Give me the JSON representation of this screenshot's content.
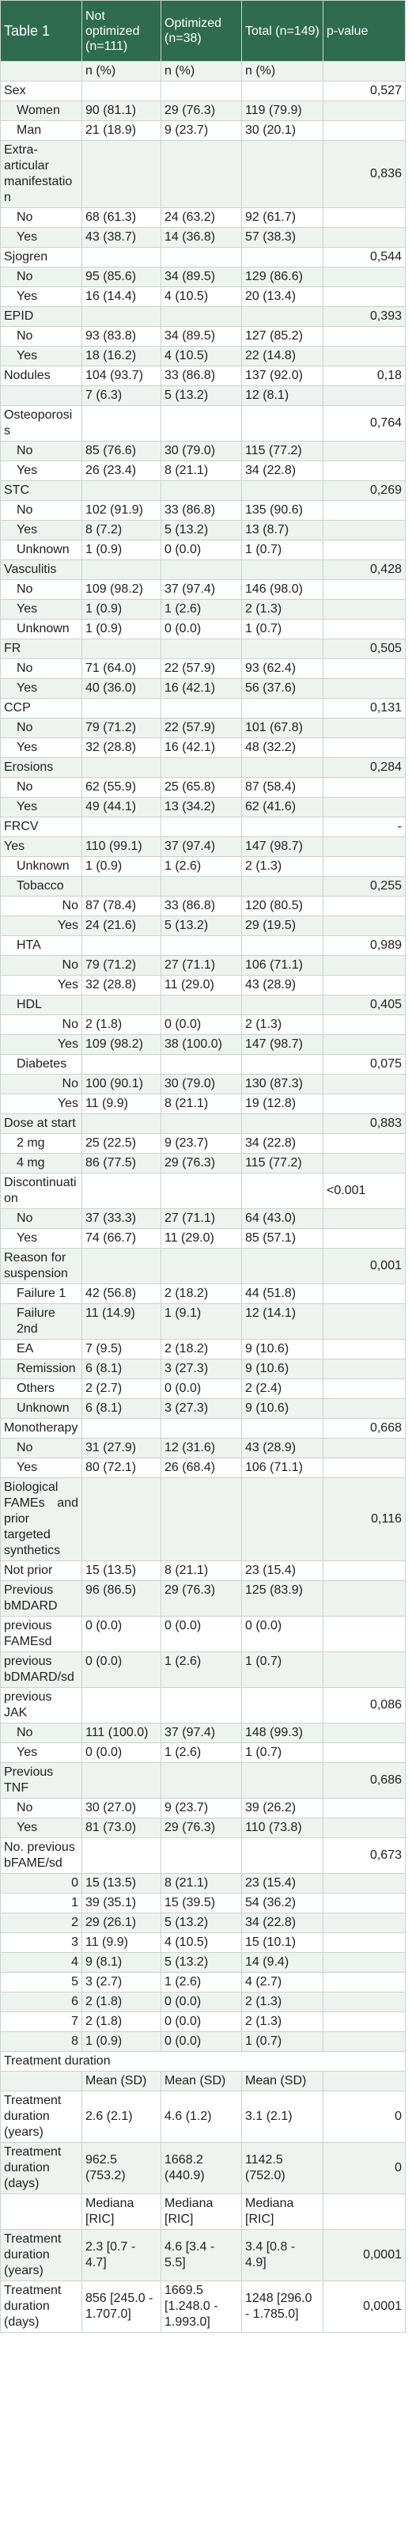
{
  "table": {
    "title": "Table 1",
    "headers": [
      "Not optimized (n=111)",
      "Optimized (n=38)",
      "Total (n=149)",
      "p-value"
    ],
    "rows": [
      {
        "label": "",
        "c1": "n (%)",
        "c2": "n (%)",
        "c3": "n (%)",
        "p": ""
      },
      {
        "label": "Sex",
        "c1": "",
        "c2": "",
        "c3": "",
        "p": "0,527",
        "type": "cat"
      },
      {
        "label": "Women",
        "c1": "90 (81.1)",
        "c2": "29 (76.3)",
        "c3": "119 (79.9)",
        "p": "",
        "type": "sub"
      },
      {
        "label": "Man",
        "c1": "21 (18.9)",
        "c2": "9 (23.7)",
        "c3": "30 (20.1)",
        "p": "",
        "type": "sub"
      },
      {
        "label": "Extra-articular manifestation",
        "c1": "",
        "c2": "",
        "c3": "",
        "p": "0,836",
        "type": "cat"
      },
      {
        "label": "No",
        "c1": "68 (61.3)",
        "c2": "24 (63.2)",
        "c3": "92 (61.7)",
        "p": "",
        "type": "sub"
      },
      {
        "label": "Yes",
        "c1": "43 (38.7)",
        "c2": "14 (36.8)",
        "c3": "57 (38.3)",
        "p": "",
        "type": "sub"
      },
      {
        "label": "Sjogren",
        "c1": "",
        "c2": "",
        "c3": "",
        "p": "0,544",
        "type": "cat"
      },
      {
        "label": "No",
        "c1": "95 (85.6)",
        "c2": "34 (89.5)",
        "c3": "129 (86.6)",
        "p": "",
        "type": "sub"
      },
      {
        "label": "Yes",
        "c1": "16 (14.4)",
        "c2": "4 (10.5)",
        "c3": "20 (13.4)",
        "p": "",
        "type": "sub"
      },
      {
        "label": "EPID",
        "c1": "",
        "c2": "",
        "c3": "",
        "p": "0,393",
        "type": "cat"
      },
      {
        "label": "No",
        "c1": "93 (83.8)",
        "c2": "34 (89.5)",
        "c3": "127 (85.2)",
        "p": "",
        "type": "sub"
      },
      {
        "label": "Yes",
        "c1": "18 (16.2)",
        "c2": "4 (10.5)",
        "c3": "22 (14.8)",
        "p": "",
        "type": "sub"
      },
      {
        "label": "Nodules",
        "c1": "104 (93.7)",
        "c2": "33 (86.8)",
        "c3": "137 (92.0)",
        "p": "0,18",
        "type": "cat"
      },
      {
        "label": "",
        "c1": "7 (6.3)",
        "c2": "5 (13.2)",
        "c3": "12 (8.1)",
        "p": "",
        "type": "sub"
      },
      {
        "label": "Osteoporosis",
        "c1": "",
        "c2": "",
        "c3": "",
        "p": "0,764",
        "type": "cat"
      },
      {
        "label": "No",
        "c1": "85 (76.6)",
        "c2": "30 (79.0)",
        "c3": "115 (77.2)",
        "p": "",
        "type": "sub"
      },
      {
        "label": "Yes",
        "c1": "26 (23.4)",
        "c2": "8 (21.1)",
        "c3": "34 (22.8)",
        "p": "",
        "type": "sub"
      },
      {
        "label": "STC",
        "c1": "",
        "c2": "",
        "c3": "",
        "p": "0,269",
        "type": "cat"
      },
      {
        "label": "No",
        "c1": "102 (91.9)",
        "c2": "33 (86.8)",
        "c3": "135 (90.6)",
        "p": "",
        "type": "sub"
      },
      {
        "label": "Yes",
        "c1": "8 (7.2)",
        "c2": "5 (13.2)",
        "c3": "13 (8.7)",
        "p": "",
        "type": "sub"
      },
      {
        "label": "Unknown",
        "c1": "1 (0.9)",
        "c2": "0 (0.0)",
        "c3": "1 (0.7)",
        "p": "",
        "type": "sub"
      },
      {
        "label": "Vasculitis",
        "c1": "",
        "c2": "",
        "c3": "",
        "p": "0,428",
        "type": "cat"
      },
      {
        "label": "No",
        "c1": "109 (98.2)",
        "c2": "37 (97.4)",
        "c3": "146 (98.0)",
        "p": "",
        "type": "sub"
      },
      {
        "label": "Yes",
        "c1": "1 (0.9)",
        "c2": "1 (2.6)",
        "c3": "2 (1.3)",
        "p": "",
        "type": "sub"
      },
      {
        "label": "Unknown",
        "c1": "1 (0.9)",
        "c2": "0 (0.0)",
        "c3": "1 (0.7)",
        "p": "",
        "type": "sub"
      },
      {
        "label": "FR",
        "c1": "",
        "c2": "",
        "c3": "",
        "p": "0,505",
        "type": "cat"
      },
      {
        "label": "No",
        "c1": "71 (64.0)",
        "c2": "22 (57.9)",
        "c3": "93 (62.4)",
        "p": "",
        "type": "sub"
      },
      {
        "label": "Yes",
        "c1": "40 (36.0)",
        "c2": "16 (42.1)",
        "c3": "56 (37.6)",
        "p": "",
        "type": "sub"
      },
      {
        "label": "CCP",
        "c1": "",
        "c2": "",
        "c3": "",
        "p": "0,131",
        "type": "cat"
      },
      {
        "label": "No",
        "c1": "79 (71.2)",
        "c2": "22 (57.9)",
        "c3": "101 (67.8)",
        "p": "",
        "type": "sub"
      },
      {
        "label": "Yes",
        "c1": "32 (28.8)",
        "c2": "16 (42.1)",
        "c3": "48 (32.2)",
        "p": "",
        "type": "sub"
      },
      {
        "label": "Erosions",
        "c1": "",
        "c2": "",
        "c3": "",
        "p": "0,284",
        "type": "cat"
      },
      {
        "label": "No",
        "c1": "62 (55.9)",
        "c2": "25 (65.8)",
        "c3": "87 (58.4)",
        "p": "",
        "type": "sub"
      },
      {
        "label": "Yes",
        "c1": "49 (44.1)",
        "c2": "13 (34.2)",
        "c3": "62 (41.6)",
        "p": "",
        "type": "sub"
      },
      {
        "label": "FRCV",
        "c1": "",
        "c2": "",
        "c3": "",
        "p": "-",
        "type": "cat"
      },
      {
        "label": "Yes",
        "c1": "110 (99.1)",
        "c2": "37 (97.4)",
        "c3": "147 (98.7)",
        "p": "",
        "type": "cat"
      },
      {
        "label": "Unknown",
        "c1": "1 (0.9)",
        "c2": "1 (2.6)",
        "c3": "2 (1.3)",
        "p": "",
        "type": "sub"
      },
      {
        "label": "Tobacco",
        "c1": "",
        "c2": "",
        "c3": "",
        "p": "0,255",
        "type": "sub"
      },
      {
        "label": "No",
        "c1": "87 (78.4)",
        "c2": "33 (86.8)",
        "c3": "120 (80.5)",
        "p": "",
        "type": "subr"
      },
      {
        "label": "Yes",
        "c1": "24 (21.6)",
        "c2": "5 (13.2)",
        "c3": "29 (19.5)",
        "p": "",
        "type": "subr"
      },
      {
        "label": "HTA",
        "c1": "",
        "c2": "",
        "c3": "",
        "p": "0,989",
        "type": "sub"
      },
      {
        "label": "No",
        "c1": "79 (71.2)",
        "c2": "27 (71.1)",
        "c3": "106 (71.1)",
        "p": "",
        "type": "subr"
      },
      {
        "label": "Yes",
        "c1": "32 (28.8)",
        "c2": "11 (29.0)",
        "c3": "43 (28.9)",
        "p": "",
        "type": "subr"
      },
      {
        "label": "HDL",
        "c1": "",
        "c2": "",
        "c3": "",
        "p": "0,405",
        "type": "sub"
      },
      {
        "label": "No",
        "c1": "2 (1.8)",
        "c2": "0 (0.0)",
        "c3": "2 (1.3)",
        "p": "",
        "type": "subr"
      },
      {
        "label": "Yes",
        "c1": "109 (98.2)",
        "c2": "38 (100.0)",
        "c3": "147 (98.7)",
        "p": "",
        "type": "subr"
      },
      {
        "label": "Diabetes",
        "c1": "",
        "c2": "",
        "c3": "",
        "p": "0,075",
        "type": "sub"
      },
      {
        "label": "No",
        "c1": "100 (90.1)",
        "c2": "30 (79.0)",
        "c3": "130 (87.3)",
        "p": "",
        "type": "subr"
      },
      {
        "label": "Yes",
        "c1": "11 (9.9)",
        "c2": "8 (21.1)",
        "c3": "19 (12.8)",
        "p": "",
        "type": "subr"
      },
      {
        "label": "Dose at start",
        "c1": "",
        "c2": "",
        "c3": "",
        "p": "0,883",
        "type": "catj"
      },
      {
        "label": "2 mg",
        "c1": "25 (22.5)",
        "c2": "9 (23.7)",
        "c3": "34 (22.8)",
        "p": "",
        "type": "sub"
      },
      {
        "label": "4 mg",
        "c1": "86 (77.5)",
        "c2": "29 (76.3)",
        "c3": "115 (77.2)",
        "p": "",
        "type": "sub"
      },
      {
        "label": "Discontinuation",
        "c1": "",
        "c2": "",
        "c3": "",
        "p": "<0.001",
        "type": "cat",
        "pleft": true
      },
      {
        "label": "No",
        "c1": "37 (33.3)",
        "c2": "27 (71.1)",
        "c3": "64 (43.0)",
        "p": "",
        "type": "sub"
      },
      {
        "label": "Yes",
        "c1": "74 (66.7)",
        "c2": "11 (29.0)",
        "c3": "85 (57.1)",
        "p": "",
        "type": "sub"
      },
      {
        "label": "Reason for suspension",
        "c1": "",
        "c2": "",
        "c3": "",
        "p": "0,001",
        "type": "cat"
      },
      {
        "label": "Failure 1",
        "c1": "42 (56.8)",
        "c2": "2 (18.2)",
        "c3": "44 (51.8)",
        "p": "",
        "type": "sub"
      },
      {
        "label": "Failure 2nd",
        "c1": "11 (14.9)",
        "c2": "1 (9.1)",
        "c3": "12 (14.1)",
        "p": "",
        "type": "sub"
      },
      {
        "label": "EA",
        "c1": "7 (9.5)",
        "c2": "2 (18.2)",
        "c3": "9 (10.6)",
        "p": "",
        "type": "sub"
      },
      {
        "label": "Remission",
        "c1": "6 (8.1)",
        "c2": "3 (27.3)",
        "c3": "9 (10.6)",
        "p": "",
        "type": "sub"
      },
      {
        "label": "Others",
        "c1": "2 (2.7)",
        "c2": "0 (0.0)",
        "c3": "2 (2.4)",
        "p": "",
        "type": "sub"
      },
      {
        "label": "Unknown",
        "c1": "6 (8.1)",
        "c2": "3 (27.3)",
        "c3": "9 (10.6)",
        "p": "",
        "type": "sub"
      },
      {
        "label": "Monotherapy",
        "c1": "",
        "c2": "",
        "c3": "",
        "p": "0,668",
        "type": "cat"
      },
      {
        "label": "No",
        "c1": "31 (27.9)",
        "c2": "12 (31.6)",
        "c3": "43 (28.9)",
        "p": "",
        "type": "sub"
      },
      {
        "label": "Yes",
        "c1": "80 (72.1)",
        "c2": "26 (68.4)",
        "c3": "106 (71.1)",
        "p": "",
        "type": "sub"
      },
      {
        "label": "Biological FAMEs and prior targeted synthetics",
        "c1": "",
        "c2": "",
        "c3": "",
        "p": "0,116",
        "type": "catj",
        "tall": true
      },
      {
        "label": "Not prior",
        "c1": "15 (13.5)",
        "c2": "8 (21.1)",
        "c3": "23 (15.4)",
        "p": "",
        "type": "cat"
      },
      {
        "label": "Previous bMDARD",
        "c1": "96 (86.5)",
        "c2": "29 (76.3)",
        "c3": "125 (83.9)",
        "p": "",
        "type": "cat"
      },
      {
        "label": "previous FAMEsd",
        "c1": "0 (0.0)",
        "c2": "0 (0.0)",
        "c3": "0 (0.0)",
        "p": "",
        "type": "cat"
      },
      {
        "label": "previous bDMARD/sd",
        "c1": "0 (0.0)",
        "c2": "1 (2.6)",
        "c3": "1 (0.7)",
        "p": "",
        "type": "cat"
      },
      {
        "label": "previous JAK",
        "c1": "",
        "c2": "",
        "c3": "",
        "p": "0,086",
        "type": "cat"
      },
      {
        "label": "No",
        "c1": "111 (100.0)",
        "c2": "37 (97.4)",
        "c3": "148 (99.3)",
        "p": "",
        "type": "sub"
      },
      {
        "label": "Yes",
        "c1": "0 (0.0)",
        "c2": "1 (2.6)",
        "c3": "1 (0.7)",
        "p": "",
        "type": "sub"
      },
      {
        "label": "Previous TNF",
        "c1": "",
        "c2": "",
        "c3": "",
        "p": "0,686",
        "type": "cat"
      },
      {
        "label": "No",
        "c1": "30 (27.0)",
        "c2": "9 (23.7)",
        "c3": "39 (26.2)",
        "p": "",
        "type": "sub"
      },
      {
        "label": "Yes",
        "c1": "81 (73.0)",
        "c2": "29 (76.3)",
        "c3": "110 (73.8)",
        "p": "",
        "type": "sub"
      },
      {
        "label": "No. previous bFAME/sd",
        "c1": "",
        "c2": "",
        "c3": "",
        "p": "0,673",
        "type": "cat",
        "tall": true
      },
      {
        "label": "0",
        "c1": "15 (13.5)",
        "c2": "8 (21.1)",
        "c3": "23 (15.4)",
        "p": "",
        "type": "subr"
      },
      {
        "label": "1",
        "c1": "39 (35.1)",
        "c2": "15 (39.5)",
        "c3": "54 (36.2)",
        "p": "",
        "type": "subr"
      },
      {
        "label": "2",
        "c1": "29 (26.1)",
        "c2": "5 (13.2)",
        "c3": "34 (22.8)",
        "p": "",
        "type": "subr"
      },
      {
        "label": "3",
        "c1": "11 (9.9)",
        "c2": "4 (10.5)",
        "c3": "15 (10.1)",
        "p": "",
        "type": "subr"
      },
      {
        "label": "4",
        "c1": "9 (8.1)",
        "c2": "5 (13.2)",
        "c3": "14 (9.4)",
        "p": "",
        "type": "subr"
      },
      {
        "label": "5",
        "c1": "3 (2.7)",
        "c2": "1 (2.6)",
        "c3": "4 (2.7)",
        "p": "",
        "type": "subr"
      },
      {
        "label": "6",
        "c1": "2 (1.8)",
        "c2": "0 (0.0)",
        "c3": "2 (1.3)",
        "p": "",
        "type": "subr"
      },
      {
        "label": "7",
        "c1": "2 (1.8)",
        "c2": "0 (0.0)",
        "c3": "2 (1.3)",
        "p": "",
        "type": "subr"
      },
      {
        "label": "8",
        "c1": "1 (0.9)",
        "c2": "0 (0.0)",
        "c3": "1 (0.7)",
        "p": "",
        "type": "subr"
      },
      {
        "label": "Treatment duration",
        "c1": "",
        "c2": "",
        "c3": "",
        "p": "",
        "type": "cat",
        "span": true
      },
      {
        "label": "",
        "c1": "Mean (SD)",
        "c2": "Mean (SD)",
        "c3": "Mean (SD)",
        "p": "",
        "type": "cat"
      },
      {
        "label": "Treatment duration (years)",
        "c1": "2.6 (2.1)",
        "c2": "4.6 (1.2)",
        "c3": "3.1 (2.1)",
        "p": "0",
        "type": "cat",
        "vmid": true
      },
      {
        "label": "Treatment duration (days)",
        "c1": "962.5 (753.2)",
        "c2": "1668.2 (440.9)",
        "c3": "1142.5 (752.0)",
        "p": "0",
        "type": "cat",
        "vmid": true
      },
      {
        "label": "",
        "c1": "Mediana [RIC]",
        "c2": "Mediana [RIC]",
        "c3": "Mediana [RIC]",
        "p": "",
        "type": "cat",
        "spacer": true
      },
      {
        "label": "Treatment duration (years)",
        "c1": "2.3 [0.7 - 4.7]",
        "c2": "4.6 [3.4 - 5.5]",
        "c3": "3.4 [0.8 - 4.9]",
        "p": "0,0001",
        "type": "cat",
        "vmid": true
      },
      {
        "label": "Treatment duration (days)",
        "c1": "856 [245.0 - 1.707.0]",
        "c2": "1669.5 [1.248.0 - 1.993.0]",
        "c3": "1248 [296.0 - 1.785.0]",
        "p": "0,0001",
        "type": "cat",
        "vmid": true
      }
    ]
  },
  "colors": {
    "header_bg": "#2f6b4f",
    "stripe": "#eef3f0",
    "border": "#c9d3ce"
  }
}
